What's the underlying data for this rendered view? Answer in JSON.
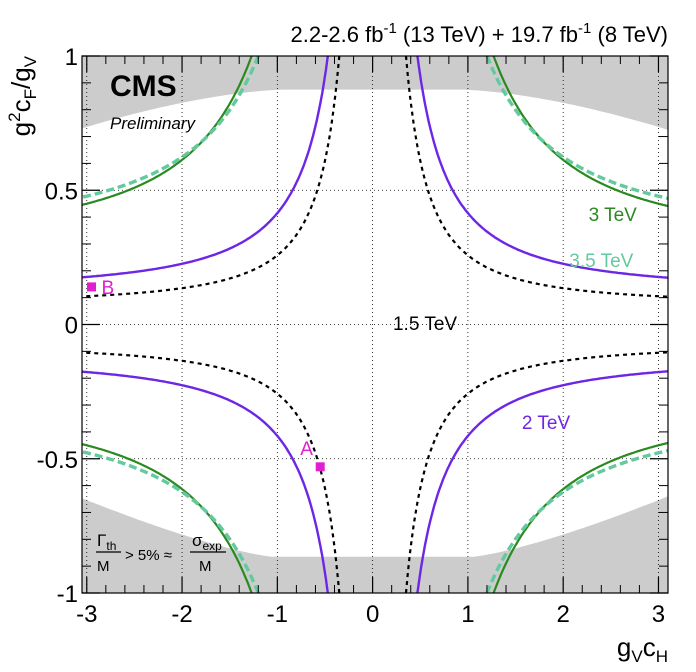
{
  "chart_data": {
    "type": "line",
    "header": "2.2-2.6 fb$^{-1}$ (13 TeV) + 19.7 fb$^{-1}$ (8 TeV)",
    "header_parts": {
      "lumi13": "2.2-2.6 fb",
      "sup13": "-1",
      "energy13": " (13 TeV) + 19.7 fb",
      "sup8": "-1",
      "energy8": " (8 TeV)"
    },
    "experiment": "CMS",
    "status": "Preliminary",
    "xlabel": {
      "main": "g",
      "sub1": "V",
      "mid": "c",
      "sub2": "H"
    },
    "ylabel": {
      "main": "g",
      "sup": "2",
      "mid": "c",
      "sub1": "F",
      "slash": "/g",
      "sub2": "V"
    },
    "xlim": [
      -3.05,
      3.1
    ],
    "ylim": [
      -1,
      1
    ],
    "x_ticks": [
      -3,
      -2,
      -1,
      0,
      1,
      2,
      3
    ],
    "x_tick_labels": [
      "-3",
      "-2",
      "-1",
      "0",
      "1",
      "2",
      "3"
    ],
    "y_ticks": [
      -1,
      -0.5,
      0,
      0.5,
      1
    ],
    "y_tick_labels": [
      "-1",
      "-0.5",
      "0",
      "0.5",
      "1"
    ],
    "grid": true,
    "shaded_region_label": {
      "num1": "Γ",
      "sub1": "th",
      "den1": "M",
      "rel": "> 5% ≈",
      "num2": "σ",
      "sub2": "exp",
      "den2": "M"
    },
    "shaded_region_color": "#cccccc",
    "series": [
      {
        "name": "1.5 TeV",
        "color": "#000000",
        "dash": "4,4",
        "width": 2.2,
        "x_at_y1": 0.35,
        "y_asym": 0.07
      },
      {
        "name": "2 TeV",
        "color": "#6e26e6",
        "dash": "",
        "width": 2.4,
        "x_at_y1": 0.47,
        "y_asym": 0.115
      },
      {
        "name": "3 TeV",
        "color": "#2a8a20",
        "dash": "",
        "width": 2.2,
        "x_at_y1": 1.27,
        "y_asym": 0.29
      },
      {
        "name": "3.5 TeV",
        "color": "#63c99e",
        "dash": "8,4",
        "width": 3.4,
        "x_at_y1": 1.2,
        "y_asym": 0.31
      }
    ],
    "points": [
      {
        "name": "A",
        "x": -0.55,
        "y": -0.53,
        "color": "#e01fd1"
      },
      {
        "name": "B",
        "x": -2.95,
        "y": 0.14,
        "color": "#e01fd1"
      }
    ]
  }
}
